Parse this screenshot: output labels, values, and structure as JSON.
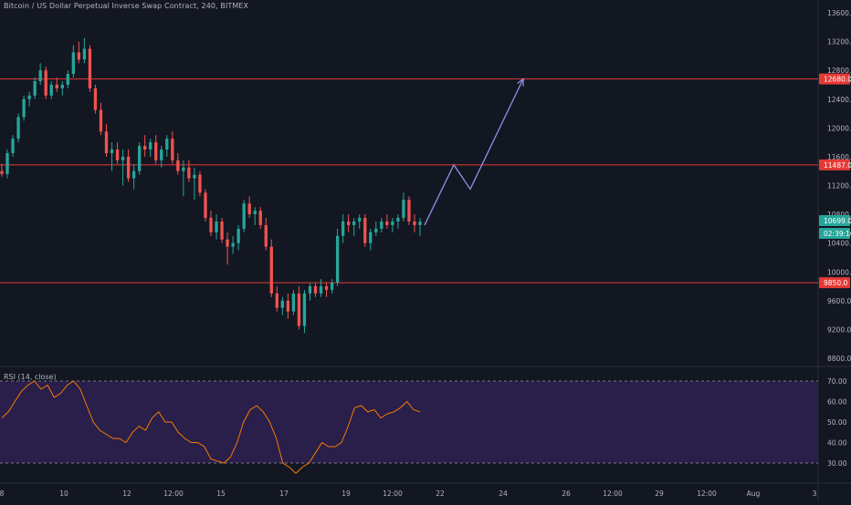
{
  "header": {
    "title": "Bitcoin / US Dollar Perpetual Inverse Swap Contract, 240, BITMEX"
  },
  "indicator": {
    "label": "RSI (14, close)"
  },
  "colors": {
    "background": "#131722",
    "rsi_band": "#2a1e4a",
    "up": "#26a69a",
    "down": "#ef5350",
    "level_line": "#e53935",
    "arrow": "#8f8fe6",
    "rsi_line": "#f57c00",
    "axis_text": "#b2b5be",
    "price_badge": "#26a69a"
  },
  "price_axis": {
    "ticks": [
      "13600.0",
      "13200.0",
      "12800.0",
      "12400.0",
      "12000.0",
      "11600.0",
      "11200.0",
      "10800.0",
      "10400.0",
      "10000.0",
      "9600.0",
      "9200.0",
      "8800.0"
    ],
    "badges": [
      {
        "text": "12680.0",
        "kind": "level"
      },
      {
        "text": "11487.0",
        "kind": "level"
      },
      {
        "text": "10699.0",
        "kind": "price"
      },
      {
        "text": "02:39:16",
        "kind": "timer"
      },
      {
        "text": "9850.0",
        "kind": "level"
      }
    ]
  },
  "rsi_axis": {
    "ticks": [
      "70.00",
      "60.00",
      "50.00",
      "40.00",
      "30.00"
    ]
  },
  "time_axis": {
    "ticks": [
      "8",
      "10",
      "12",
      "12:00",
      "15",
      "17",
      "19",
      "12:00",
      "22",
      "24",
      "26",
      "12:00",
      "29",
      "12:00",
      "Aug",
      "3"
    ]
  },
  "chart_data": {
    "type": "candlestick",
    "price_range": [
      8600,
      13800
    ],
    "horizontal_levels": [
      12680,
      11487,
      9850
    ],
    "last_price": 10699,
    "candles": [
      [
        11400,
        11500,
        11320,
        11360
      ],
      [
        11360,
        11700,
        11300,
        11650
      ],
      [
        11650,
        11900,
        11600,
        11850
      ],
      [
        11850,
        12200,
        11800,
        12150
      ],
      [
        12150,
        12450,
        12100,
        12400
      ],
      [
        12400,
        12500,
        12300,
        12450
      ],
      [
        12450,
        12700,
        12400,
        12650
      ],
      [
        12650,
        12900,
        12600,
        12800
      ],
      [
        12800,
        12850,
        12400,
        12450
      ],
      [
        12450,
        12650,
        12400,
        12600
      ],
      [
        12600,
        12700,
        12500,
        12550
      ],
      [
        12550,
        12650,
        12450,
        12600
      ],
      [
        12600,
        12800,
        12550,
        12750
      ],
      [
        12750,
        13150,
        12700,
        13050
      ],
      [
        13050,
        13200,
        12900,
        12950
      ],
      [
        12950,
        13250,
        12900,
        13100
      ],
      [
        13100,
        13150,
        12500,
        12550
      ],
      [
        12550,
        12600,
        12200,
        12250
      ],
      [
        12250,
        12350,
        11900,
        11950
      ],
      [
        11950,
        12050,
        11600,
        11650
      ],
      [
        11650,
        11800,
        11400,
        11700
      ],
      [
        11700,
        11800,
        11500,
        11550
      ],
      [
        11550,
        11700,
        11200,
        11600
      ],
      [
        11600,
        11700,
        11250,
        11300
      ],
      [
        11300,
        11500,
        11150,
        11400
      ],
      [
        11400,
        11800,
        11350,
        11750
      ],
      [
        11750,
        11900,
        11600,
        11700
      ],
      [
        11700,
        11850,
        11600,
        11800
      ],
      [
        11800,
        11900,
        11500,
        11550
      ],
      [
        11550,
        11750,
        11450,
        11700
      ],
      [
        11700,
        11900,
        11600,
        11850
      ],
      [
        11850,
        11950,
        11500,
        11550
      ],
      [
        11550,
        11650,
        11350,
        11400
      ],
      [
        11400,
        11550,
        11050,
        11450
      ],
      [
        11450,
        11550,
        11250,
        11300
      ],
      [
        11300,
        11450,
        11000,
        11350
      ],
      [
        11350,
        11400,
        11050,
        11100
      ],
      [
        11100,
        11150,
        10700,
        10750
      ],
      [
        10750,
        10850,
        10500,
        10550
      ],
      [
        10550,
        10800,
        10450,
        10700
      ],
      [
        10700,
        10750,
        10400,
        10450
      ],
      [
        10450,
        10550,
        10100,
        10350
      ],
      [
        10350,
        10500,
        10250,
        10400
      ],
      [
        10400,
        10650,
        10300,
        10600
      ],
      [
        10600,
        11000,
        10550,
        10950
      ],
      [
        10950,
        11050,
        10750,
        10800
      ],
      [
        10800,
        10900,
        10650,
        10850
      ],
      [
        10850,
        10900,
        10600,
        10650
      ],
      [
        10650,
        10750,
        10300,
        10350
      ],
      [
        10350,
        10450,
        9650,
        9700
      ],
      [
        9700,
        9800,
        9450,
        9500
      ],
      [
        9500,
        9650,
        9400,
        9600
      ],
      [
        9600,
        9700,
        9350,
        9450
      ],
      [
        9450,
        9750,
        9400,
        9700
      ],
      [
        9700,
        9800,
        9200,
        9250
      ],
      [
        9250,
        9750,
        9150,
        9700
      ],
      [
        9700,
        9850,
        9600,
        9800
      ],
      [
        9800,
        9850,
        9650,
        9700
      ],
      [
        9700,
        9900,
        9650,
        9800
      ],
      [
        9800,
        9850,
        9650,
        9750
      ],
      [
        9750,
        9900,
        9700,
        9850
      ],
      [
        9850,
        10600,
        9800,
        10500
      ],
      [
        10500,
        10800,
        10400,
        10700
      ],
      [
        10700,
        10800,
        10550,
        10650
      ],
      [
        10650,
        10750,
        10500,
        10700
      ],
      [
        10700,
        10800,
        10600,
        10750
      ],
      [
        10750,
        10800,
        10350,
        10400
      ],
      [
        10400,
        10600,
        10300,
        10550
      ],
      [
        10550,
        10700,
        10500,
        10600
      ],
      [
        10600,
        10750,
        10550,
        10700
      ],
      [
        10700,
        10800,
        10600,
        10650
      ],
      [
        10650,
        10750,
        10550,
        10700
      ],
      [
        10700,
        10800,
        10600,
        10750
      ],
      [
        10750,
        11100,
        10700,
        11000
      ],
      [
        11000,
        11050,
        10650,
        10700
      ],
      [
        10700,
        10800,
        10550,
        10650
      ],
      [
        10650,
        10750,
        10500,
        10699
      ]
    ],
    "rsi": [
      52,
      55,
      60,
      65,
      68,
      70,
      66,
      68,
      62,
      64,
      68,
      70,
      66,
      58,
      50,
      46,
      44,
      42,
      42,
      40,
      45,
      48,
      46,
      52,
      55,
      50,
      50,
      45,
      42,
      40,
      40,
      38,
      32,
      31,
      30,
      33,
      40,
      50,
      56,
      58,
      55,
      50,
      42,
      30,
      28,
      25,
      28,
      30,
      35,
      40,
      38,
      38,
      40,
      48,
      57,
      58,
      55,
      56,
      52,
      54,
      55,
      57,
      60,
      56,
      55
    ],
    "rsi_levels": [
      70,
      30
    ],
    "annotation_path": [
      [
        0,
        10650
      ],
      [
        1,
        11487
      ],
      [
        2,
        11150
      ],
      [
        3,
        12680
      ]
    ]
  }
}
